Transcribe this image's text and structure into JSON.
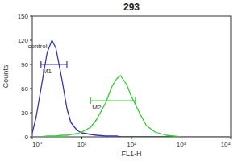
{
  "chart_data": {
    "type": "line",
    "title": "293",
    "x_label": "FL1-H",
    "y_label": "Counts",
    "log": "x",
    "x": [
      1,
      1.2,
      1.5,
      2,
      2.5,
      3,
      4,
      5,
      6,
      8,
      10,
      15,
      20,
      30,
      40,
      50,
      60,
      80,
      100,
      150,
      200,
      300,
      500,
      1000,
      10000
    ],
    "series": [
      {
        "name": "control",
        "color": "#3535a8",
        "values": [
          5,
          25,
          60,
          105,
          120,
          110,
          70,
          35,
          18,
          8,
          5,
          3,
          2,
          1,
          1,
          1,
          0,
          0,
          0,
          0,
          0,
          0,
          0,
          0,
          0
        ]
      },
      {
        "color": "#33cc33",
        "values": [
          0,
          0,
          0,
          1,
          1,
          1,
          2,
          2,
          3,
          4,
          6,
          12,
          22,
          42,
          62,
          72,
          76,
          65,
          50,
          28,
          14,
          6,
          2,
          0,
          0
        ]
      }
    ],
    "gates": [
      {
        "label": "M1",
        "x": [
          1.5,
          5
        ],
        "y": 90,
        "color": "#3535a8"
      },
      {
        "label": "M2",
        "x": [
          15,
          120
        ],
        "y": 45,
        "color": "#33cc33"
      }
    ],
    "xlim": [
      1,
      10000
    ],
    "xticks": [
      {
        "value": 1,
        "label": "10⁰"
      },
      {
        "value": 10,
        "label": "10¹"
      },
      {
        "value": 100,
        "label": "10²"
      },
      {
        "value": 1000,
        "label": "10³"
      },
      {
        "value": 10000,
        "label": "10⁴"
      }
    ],
    "ylim": [
      0,
      150
    ],
    "yticks": [
      0,
      30,
      60,
      90,
      120,
      150
    ],
    "grid": false
  }
}
